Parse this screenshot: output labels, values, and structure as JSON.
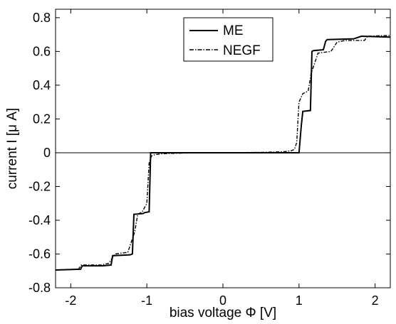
{
  "chart_data": {
    "type": "line",
    "xlabel": "bias voltage Φ [V]",
    "ylabel": "current I [μ A]",
    "xlim": [
      -2.2,
      2.2
    ],
    "ylim": [
      -0.8,
      0.85
    ],
    "x_ticks": [
      "-2",
      "-1",
      "0",
      "1",
      "2"
    ],
    "y_ticks": [
      "-0.8",
      "-0.6",
      "-0.4",
      "-0.2",
      "0",
      "0.2",
      "0.4",
      "0.6",
      "0.8"
    ],
    "zero_line": true,
    "grid": false,
    "legend_position": "top-center",
    "series": [
      {
        "name": "ME",
        "style": "solid",
        "color": "#000000",
        "x": [
          -2.2,
          -1.87,
          -1.85,
          -1.58,
          -1.47,
          -1.45,
          -1.22,
          -1.19,
          -1.17,
          -1.05,
          -1.03,
          -0.97,
          -0.95,
          0.0,
          1.0,
          1.03,
          1.05,
          1.15,
          1.17,
          1.19,
          1.32,
          1.35,
          1.37,
          1.72,
          1.82,
          2.2
        ],
        "y": [
          -0.695,
          -0.69,
          -0.67,
          -0.67,
          -0.665,
          -0.61,
          -0.605,
          -0.6,
          -0.365,
          -0.36,
          -0.355,
          -0.35,
          0.0,
          0.0,
          0.0,
          0.16,
          0.245,
          0.25,
          0.6,
          0.605,
          0.61,
          0.66,
          0.67,
          0.675,
          0.69,
          0.685
        ]
      },
      {
        "name": "NEGF",
        "style": "dashdot",
        "color": "#000000",
        "x": [
          -2.2,
          -1.9,
          -1.86,
          -1.6,
          -1.5,
          -1.42,
          -1.25,
          -1.16,
          -1.12,
          -1.06,
          -1.0,
          -0.97,
          -0.94,
          -0.9,
          -0.8,
          -0.5,
          0.0,
          0.5,
          0.8,
          0.9,
          0.94,
          0.97,
          1.0,
          1.05,
          1.12,
          1.16,
          1.25,
          1.42,
          1.5,
          1.6,
          1.86,
          1.9,
          2.2
        ],
        "y": [
          -0.695,
          -0.69,
          -0.665,
          -0.665,
          -0.655,
          -0.6,
          -0.59,
          -0.47,
          -0.365,
          -0.35,
          -0.3,
          -0.06,
          -0.02,
          -0.012,
          -0.006,
          -0.002,
          0.0,
          0.002,
          0.006,
          0.012,
          0.02,
          0.06,
          0.3,
          0.35,
          0.365,
          0.47,
          0.59,
          0.6,
          0.655,
          0.665,
          0.665,
          0.69,
          0.695
        ]
      }
    ]
  }
}
